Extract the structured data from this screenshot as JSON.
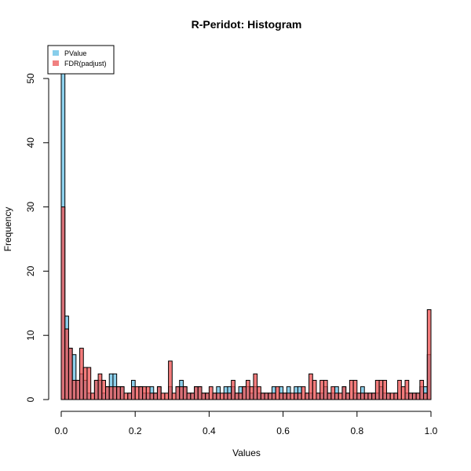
{
  "chart_data": {
    "type": "histogram",
    "title": "R-Peridot: Histogram",
    "xlabel": "Values",
    "ylabel": "Frequency",
    "xlim": [
      0,
      1
    ],
    "ylim": [
      0,
      50
    ],
    "x_ticks": [
      "0.0",
      "0.2",
      "0.4",
      "0.6",
      "0.8",
      "1.0"
    ],
    "y_ticks": [
      "0",
      "10",
      "20",
      "30",
      "40",
      "50"
    ],
    "bin_width": 0.01,
    "legend_position": "top-left",
    "grid": false,
    "series": [
      {
        "name": "PValue",
        "color": "#87CEEB",
        "values": [
          53,
          13,
          8,
          7,
          3,
          4,
          3,
          1,
          0,
          3,
          3,
          1,
          2,
          4,
          4,
          2,
          2,
          0,
          1,
          3,
          0,
          2,
          1,
          1,
          2,
          1,
          2,
          0,
          0,
          2,
          0,
          2,
          3,
          2,
          1,
          1,
          2,
          2,
          1,
          1,
          0,
          1,
          2,
          0,
          2,
          2,
          2,
          1,
          2,
          2,
          2,
          1,
          2,
          1,
          1,
          1,
          1,
          2,
          0,
          2,
          1,
          2,
          0,
          2,
          2,
          0,
          1,
          1,
          0,
          1,
          1,
          2,
          1,
          1,
          2,
          0,
          2,
          1,
          0,
          1,
          1,
          2,
          1,
          1,
          1,
          1,
          2,
          1,
          1,
          0,
          1,
          0,
          0,
          1,
          1,
          1,
          1,
          2,
          2,
          7
        ]
      },
      {
        "name": "FDR(padjust)",
        "color": "#F08080",
        "values": [
          30,
          11,
          8,
          3,
          3,
          8,
          5,
          5,
          1,
          3,
          4,
          3,
          2,
          2,
          2,
          2,
          2,
          1,
          1,
          2,
          2,
          2,
          2,
          2,
          1,
          1,
          2,
          1,
          1,
          6,
          1,
          2,
          2,
          2,
          1,
          1,
          2,
          2,
          1,
          1,
          2,
          1,
          1,
          1,
          1,
          1,
          3,
          1,
          1,
          2,
          3,
          2,
          4,
          2,
          1,
          1,
          1,
          1,
          2,
          1,
          1,
          1,
          1,
          1,
          1,
          2,
          1,
          4,
          3,
          1,
          3,
          3,
          1,
          2,
          1,
          1,
          2,
          1,
          3,
          3,
          1,
          1,
          1,
          1,
          1,
          3,
          3,
          3,
          1,
          1,
          1,
          3,
          2,
          3,
          1,
          1,
          1,
          3,
          1,
          14
        ]
      }
    ]
  }
}
